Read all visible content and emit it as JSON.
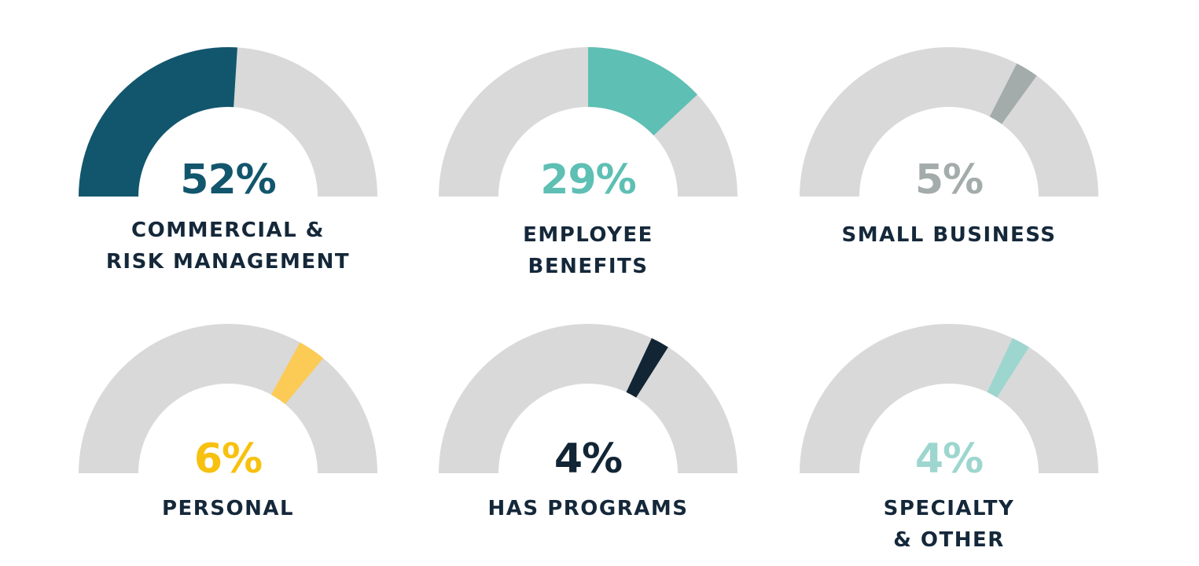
{
  "chart_data": [
    {
      "type": "gauge",
      "value": 52,
      "value_label": "52%",
      "label_lines": [
        "COMMERCIAL &",
        "RISK MANAGEMENT"
      ],
      "color": "#12566d",
      "track_color": "#d9d9d9",
      "ylim": [
        0,
        100
      ]
    },
    {
      "type": "gauge",
      "value": 29,
      "value_label": "29%",
      "label_lines": [
        "EMPLOYEE",
        "BENEFITS"
      ],
      "color": "#5ebfb4",
      "track_color": "#d9d9d9",
      "ylim": [
        0,
        100
      ]
    },
    {
      "type": "gauge",
      "value": 5,
      "value_label": "5%",
      "label_lines": [
        "SMALL BUSINESS"
      ],
      "color": "#a3abab",
      "track_color": "#d9d9d9",
      "ylim": [
        0,
        100
      ]
    },
    {
      "type": "gauge",
      "value": 6,
      "value_label": "6%",
      "label_lines": [
        "PERSONAL"
      ],
      "color": "#fccb55",
      "pct_color": "#f7c10f",
      "track_color": "#d9d9d9",
      "ylim": [
        0,
        100
      ]
    },
    {
      "type": "gauge",
      "value": 4,
      "value_label": "4%",
      "label_lines": [
        "HAS PROGRAMS"
      ],
      "color": "#122535",
      "track_color": "#d9d9d9",
      "ylim": [
        0,
        100
      ]
    },
    {
      "type": "gauge",
      "value": 4,
      "value_label": "4%",
      "label_lines": [
        "SPECIALTY",
        "& OTHER"
      ],
      "color": "#9dd6cf",
      "track_color": "#d9d9d9",
      "ylim": [
        0,
        100
      ]
    }
  ]
}
